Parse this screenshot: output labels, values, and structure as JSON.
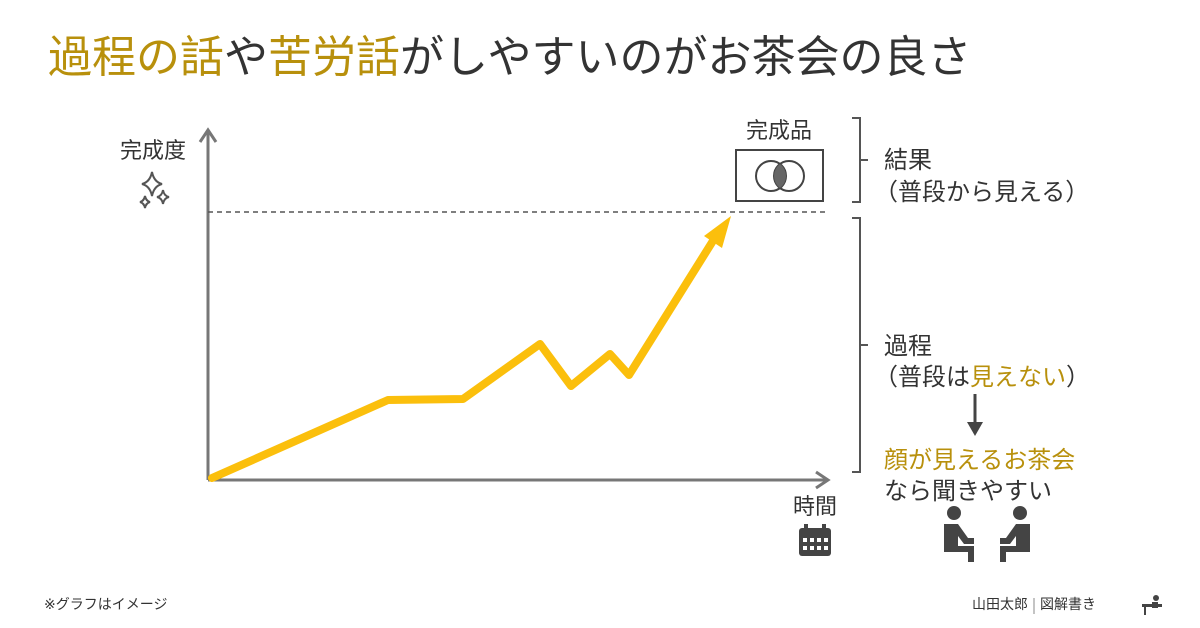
{
  "title": {
    "segments": [
      "過程の話",
      "や",
      "苦労話",
      "がしやすいのがお茶会の良さ"
    ]
  },
  "graph": {
    "y_axis_label": "完成度",
    "x_axis_label": "時間",
    "product_label": "完成品"
  },
  "result": {
    "label": "結果",
    "note": "（普段から見える）"
  },
  "process": {
    "label": "過程",
    "note_segments": [
      "（普段は",
      "見えない",
      "）"
    ]
  },
  "tea_party": {
    "line1": "顔が見えるお茶会",
    "line2": "なら聞きやすい"
  },
  "footnote": "※グラフはイメージ",
  "credit": {
    "author": "山田太郎",
    "brand": "図解書き"
  }
}
